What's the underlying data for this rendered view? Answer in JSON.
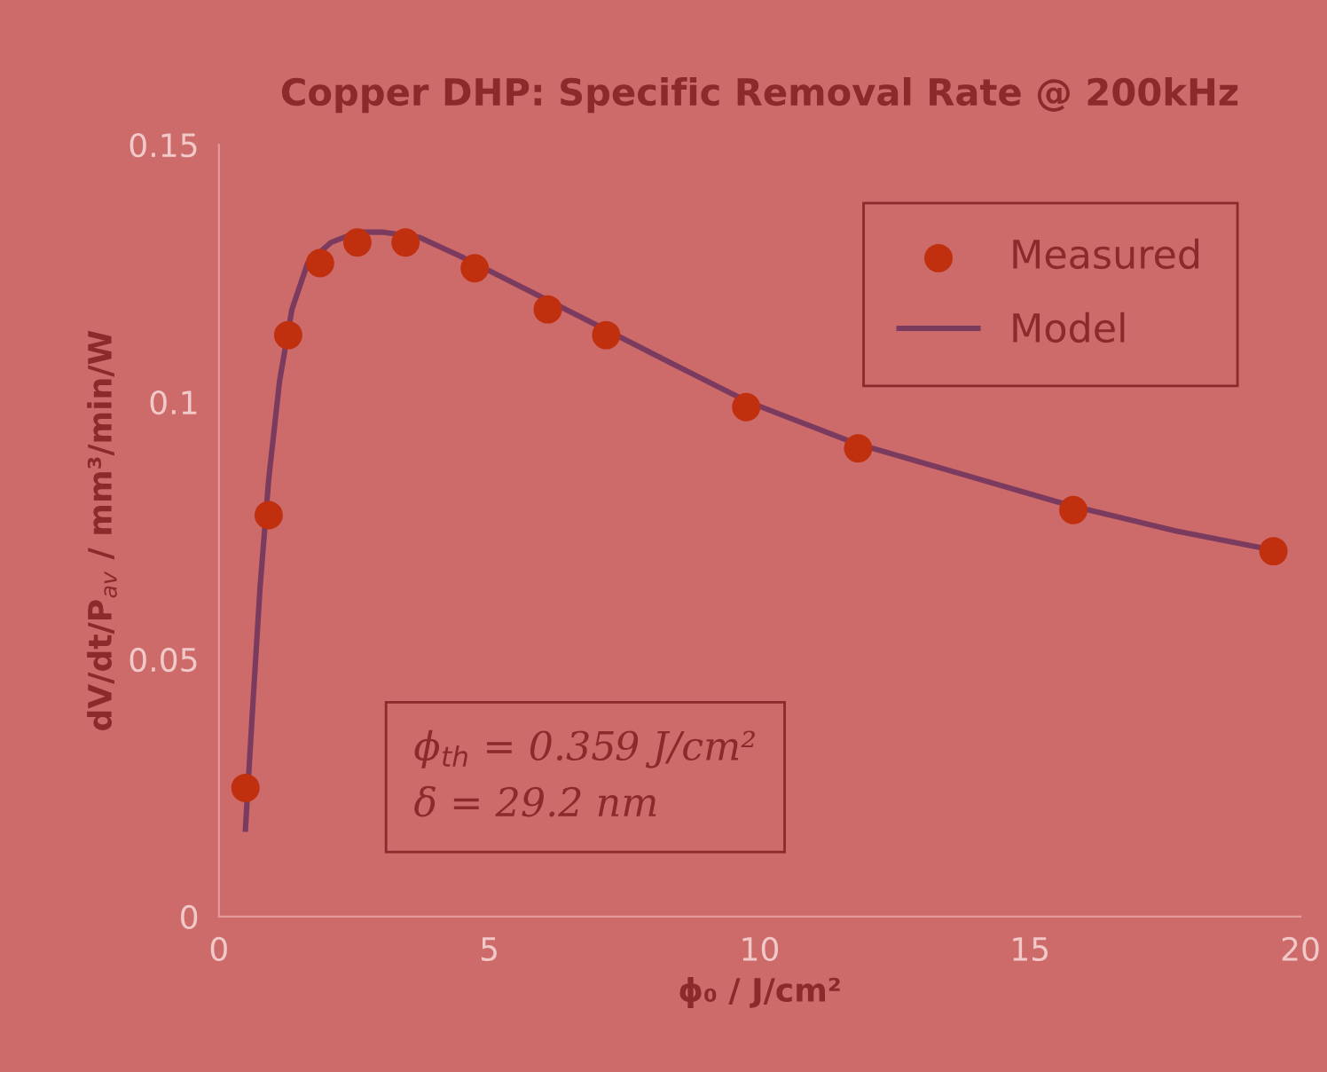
{
  "chart_data": {
    "type": "scatter",
    "title": "Copper DHP: Specific Removal Rate @ 200kHz",
    "xlabel": "ϕ₀ / J/cm²",
    "ylabel": "dV/dt/P$_{av}$ / mm³/min/W",
    "xlim": [
      0,
      20
    ],
    "xticks": [
      0,
      5,
      10,
      15,
      20
    ],
    "ylim": [
      0,
      0.15
    ],
    "yticks": [
      0,
      0.05,
      0.1,
      0.15
    ],
    "grid": false,
    "legend": "top right",
    "annotations": [
      "ϕ$_{th}$ = 0.359 J/cm²",
      "δ = 29.2 nm"
    ],
    "series": [
      {
        "name": "Measured",
        "marker": "circle",
        "color": "#c0300f",
        "x": [
          0.49,
          0.92,
          1.28,
          1.87,
          2.56,
          3.45,
          4.73,
          6.08,
          7.16,
          9.75,
          11.82,
          15.8,
          19.5
        ],
        "values": [
          0.025,
          0.078,
          0.113,
          0.127,
          0.131,
          0.131,
          0.126,
          0.118,
          0.113,
          0.099,
          0.091,
          0.079,
          0.071
        ]
      },
      {
        "name": "Model",
        "type": "line",
        "marker": "none",
        "line_style": "solid",
        "color": "#7b3b5e",
        "x": [
          0.49,
          0.62,
          0.76,
          0.92,
          1.12,
          1.35,
          1.64,
          2.07,
          2.56,
          3.05,
          3.71,
          4.53,
          5.85,
          7.16,
          8.47,
          9.79,
          11.76,
          13.73,
          15.7,
          17.67,
          19.6
        ],
        "values": [
          0.017,
          0.04,
          0.064,
          0.085,
          0.104,
          0.118,
          0.127,
          0.131,
          0.133,
          0.133,
          0.132,
          0.128,
          0.121,
          0.114,
          0.107,
          0.1,
          0.092,
          0.086,
          0.08,
          0.075,
          0.071
        ]
      }
    ]
  }
}
